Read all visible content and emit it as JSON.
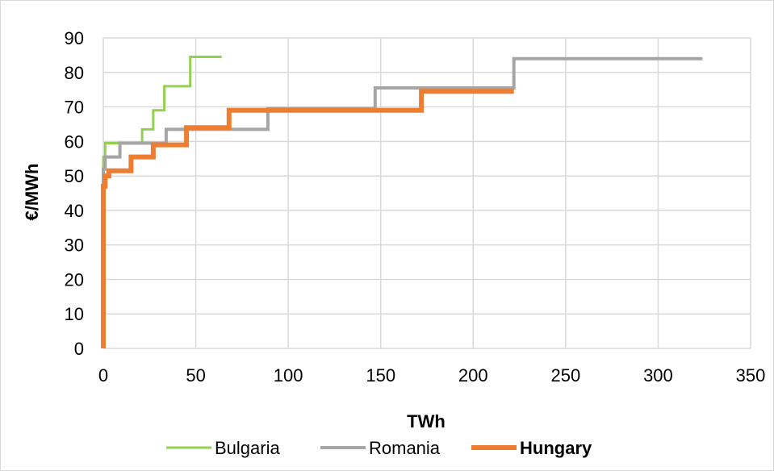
{
  "chart_data": {
    "type": "line",
    "step": true,
    "title": "",
    "xlabel": "TWh",
    "ylabel": "€/MWh",
    "xlim": [
      0,
      350
    ],
    "ylim": [
      0,
      90
    ],
    "x_ticks": [
      "0",
      "50",
      "100",
      "150",
      "200",
      "250",
      "300",
      "350"
    ],
    "y_ticks": [
      "0",
      "10",
      "20",
      "30",
      "40",
      "50",
      "60",
      "70",
      "80",
      "90"
    ],
    "grid": {
      "vertical": true,
      "horizontal": true,
      "color": "#d9d9d9"
    },
    "legend_position": "bottom",
    "series": [
      {
        "name": "Bulgaria",
        "color": "#92d050",
        "bold_label": false,
        "points": [
          [
            0,
            0
          ],
          [
            0,
            55.5
          ],
          [
            1,
            55.5
          ],
          [
            1,
            59.5
          ],
          [
            11,
            59.5
          ],
          [
            11,
            59.5
          ],
          [
            21,
            59.5
          ],
          [
            21,
            63.5
          ],
          [
            27,
            63.5
          ],
          [
            27,
            69
          ],
          [
            33,
            69
          ],
          [
            33,
            76
          ],
          [
            47,
            76
          ],
          [
            47,
            84.5
          ],
          [
            64,
            84.5
          ]
        ]
      },
      {
        "name": "Romania",
        "color": "#a5a5a5",
        "bold_label": false,
        "points": [
          [
            0,
            0
          ],
          [
            0,
            52
          ],
          [
            1,
            52
          ],
          [
            1,
            55.5
          ],
          [
            9,
            55.5
          ],
          [
            9,
            59.5
          ],
          [
            23,
            59.5
          ],
          [
            23,
            59.5
          ],
          [
            34,
            59.5
          ],
          [
            34,
            63.5
          ],
          [
            89,
            63.5
          ],
          [
            89,
            69.5
          ],
          [
            147,
            69.5
          ],
          [
            147,
            75.5
          ],
          [
            222,
            75.5
          ],
          [
            222,
            84
          ],
          [
            324,
            84
          ]
        ]
      },
      {
        "name": "Hungary",
        "color": "#ed7d31",
        "bold_label": true,
        "points": [
          [
            0,
            0
          ],
          [
            0,
            47
          ],
          [
            1,
            47
          ],
          [
            1,
            50
          ],
          [
            3,
            50
          ],
          [
            3,
            51.5
          ],
          [
            15,
            51.5
          ],
          [
            15,
            55.5
          ],
          [
            27,
            55.5
          ],
          [
            27,
            59
          ],
          [
            45,
            59
          ],
          [
            45,
            64
          ],
          [
            68,
            64
          ],
          [
            68,
            69
          ],
          [
            172,
            69
          ],
          [
            172,
            74.5
          ],
          [
            222,
            74.5
          ]
        ]
      }
    ]
  }
}
